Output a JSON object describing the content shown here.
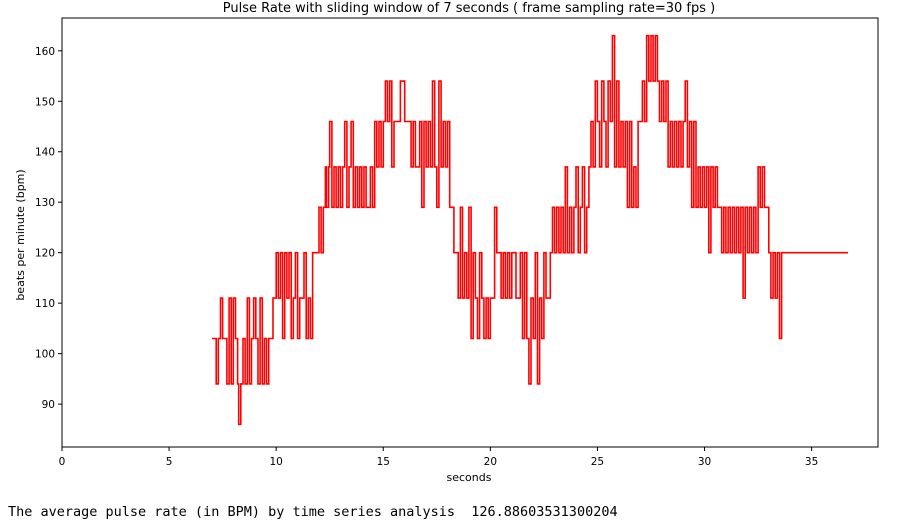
{
  "chart_data": {
    "type": "line",
    "title": "Pulse Rate with sliding window of 7 seconds  ( frame sampling rate=30 fps )",
    "xlabel": "seconds",
    "ylabel": "beats per minute (bpm)",
    "xlim": [
      0,
      38.1
    ],
    "ylim": [
      81.5,
      166.5
    ],
    "xticks": [
      0,
      5,
      10,
      15,
      20,
      25,
      30,
      35
    ],
    "yticks": [
      90,
      100,
      110,
      120,
      130,
      140,
      150,
      160
    ],
    "grid": false,
    "line_color": "#ff0000",
    "series": [
      {
        "values": [
          [
            7.0,
            103
          ],
          [
            7.2,
            94
          ],
          [
            7.3,
            103
          ],
          [
            7.4,
            111
          ],
          [
            7.5,
            103
          ],
          [
            7.6,
            103
          ],
          [
            7.7,
            94
          ],
          [
            7.8,
            111
          ],
          [
            7.9,
            94
          ],
          [
            8.0,
            111
          ],
          [
            8.1,
            103
          ],
          [
            8.2,
            94
          ],
          [
            8.25,
            86
          ],
          [
            8.35,
            94
          ],
          [
            8.45,
            103
          ],
          [
            8.55,
            94
          ],
          [
            8.65,
            111
          ],
          [
            8.75,
            94
          ],
          [
            8.85,
            103
          ],
          [
            8.95,
            111
          ],
          [
            9.05,
            103
          ],
          [
            9.15,
            94
          ],
          [
            9.25,
            111
          ],
          [
            9.35,
            94
          ],
          [
            9.45,
            103
          ],
          [
            9.55,
            94
          ],
          [
            9.65,
            103
          ],
          [
            9.75,
            103
          ],
          [
            9.85,
            111
          ],
          [
            9.95,
            111
          ],
          [
            10.0,
            120
          ],
          [
            10.1,
            111
          ],
          [
            10.2,
            120
          ],
          [
            10.3,
            103
          ],
          [
            10.4,
            120
          ],
          [
            10.5,
            111
          ],
          [
            10.6,
            120
          ],
          [
            10.7,
            103
          ],
          [
            10.8,
            111
          ],
          [
            10.9,
            120
          ],
          [
            11.0,
            103
          ],
          [
            11.1,
            111
          ],
          [
            11.2,
            111
          ],
          [
            11.3,
            120
          ],
          [
            11.4,
            103
          ],
          [
            11.5,
            111
          ],
          [
            11.6,
            103
          ],
          [
            11.7,
            120
          ],
          [
            11.9,
            120
          ],
          [
            12.0,
            129
          ],
          [
            12.1,
            120
          ],
          [
            12.2,
            129
          ],
          [
            12.3,
            137
          ],
          [
            12.35,
            129
          ],
          [
            12.45,
            137
          ],
          [
            12.5,
            146
          ],
          [
            12.6,
            129
          ],
          [
            12.7,
            137
          ],
          [
            12.8,
            129
          ],
          [
            12.9,
            137
          ],
          [
            13.0,
            129
          ],
          [
            13.1,
            137
          ],
          [
            13.2,
            146
          ],
          [
            13.3,
            129
          ],
          [
            13.4,
            137
          ],
          [
            13.5,
            146
          ],
          [
            13.6,
            129
          ],
          [
            13.7,
            137
          ],
          [
            13.8,
            129
          ],
          [
            13.9,
            137
          ],
          [
            14.0,
            129
          ],
          [
            14.1,
            137
          ],
          [
            14.2,
            129
          ],
          [
            14.3,
            129
          ],
          [
            14.4,
            137
          ],
          [
            14.5,
            129
          ],
          [
            14.6,
            146
          ],
          [
            14.7,
            137
          ],
          [
            14.8,
            146
          ],
          [
            14.9,
            137
          ],
          [
            15.0,
            146
          ],
          [
            15.1,
            154
          ],
          [
            15.2,
            146
          ],
          [
            15.3,
            154
          ],
          [
            15.4,
            137
          ],
          [
            15.5,
            146
          ],
          [
            15.6,
            146
          ],
          [
            15.8,
            154
          ],
          [
            16.0,
            146
          ],
          [
            16.2,
            146
          ],
          [
            16.3,
            137
          ],
          [
            16.4,
            146
          ],
          [
            16.5,
            137
          ],
          [
            16.7,
            146
          ],
          [
            16.8,
            129
          ],
          [
            16.9,
            146
          ],
          [
            17.0,
            137
          ],
          [
            17.1,
            146
          ],
          [
            17.2,
            137
          ],
          [
            17.3,
            154
          ],
          [
            17.4,
            137
          ],
          [
            17.5,
            129
          ],
          [
            17.6,
            154
          ],
          [
            17.7,
            137
          ],
          [
            17.8,
            146
          ],
          [
            17.9,
            137
          ],
          [
            18.0,
            146
          ],
          [
            18.1,
            129
          ],
          [
            18.2,
            129
          ],
          [
            18.3,
            120
          ],
          [
            18.4,
            120
          ],
          [
            18.5,
            111
          ],
          [
            18.6,
            129
          ],
          [
            18.7,
            111
          ],
          [
            18.8,
            120
          ],
          [
            18.9,
            111
          ],
          [
            19.0,
            129
          ],
          [
            19.1,
            103
          ],
          [
            19.2,
            120
          ],
          [
            19.3,
            111
          ],
          [
            19.4,
            103
          ],
          [
            19.5,
            120
          ],
          [
            19.6,
            111
          ],
          [
            19.7,
            103
          ],
          [
            19.8,
            111
          ],
          [
            19.9,
            103
          ],
          [
            20.0,
            111
          ],
          [
            20.1,
            111
          ],
          [
            20.2,
            129
          ],
          [
            20.3,
            120
          ],
          [
            20.4,
            120
          ],
          [
            20.5,
            111
          ],
          [
            20.6,
            120
          ],
          [
            20.7,
            111
          ],
          [
            20.8,
            120
          ],
          [
            20.9,
            111
          ],
          [
            21.0,
            120
          ],
          [
            21.1,
            120
          ],
          [
            21.2,
            111
          ],
          [
            21.3,
            111
          ],
          [
            21.4,
            120
          ],
          [
            21.5,
            103
          ],
          [
            21.6,
            120
          ],
          [
            21.7,
            103
          ],
          [
            21.8,
            94
          ],
          [
            21.9,
            111
          ],
          [
            22.0,
            103
          ],
          [
            22.1,
            120
          ],
          [
            22.2,
            94
          ],
          [
            22.3,
            111
          ],
          [
            22.4,
            103
          ],
          [
            22.5,
            120
          ],
          [
            22.6,
            111
          ],
          [
            22.7,
            111
          ],
          [
            22.8,
            120
          ],
          [
            22.9,
            129
          ],
          [
            23.0,
            120
          ],
          [
            23.1,
            129
          ],
          [
            23.2,
            120
          ],
          [
            23.3,
            129
          ],
          [
            23.4,
            120
          ],
          [
            23.5,
            137
          ],
          [
            23.6,
            120
          ],
          [
            23.7,
            129
          ],
          [
            23.8,
            120
          ],
          [
            23.9,
            129
          ],
          [
            24.0,
            137
          ],
          [
            24.1,
            120
          ],
          [
            24.2,
            129
          ],
          [
            24.3,
            137
          ],
          [
            24.4,
            120
          ],
          [
            24.5,
            129
          ],
          [
            24.6,
            137
          ],
          [
            24.7,
            146
          ],
          [
            24.8,
            137
          ],
          [
            24.9,
            154
          ],
          [
            25.0,
            146
          ],
          [
            25.1,
            137
          ],
          [
            25.2,
            154
          ],
          [
            25.3,
            146
          ],
          [
            25.4,
            137
          ],
          [
            25.5,
            154
          ],
          [
            25.6,
            146
          ],
          [
            25.7,
            163
          ],
          [
            25.8,
            137
          ],
          [
            25.9,
            154
          ],
          [
            26.0,
            137
          ],
          [
            26.1,
            146
          ],
          [
            26.2,
            137
          ],
          [
            26.3,
            146
          ],
          [
            26.4,
            129
          ],
          [
            26.5,
            146
          ],
          [
            26.6,
            129
          ],
          [
            26.7,
            137
          ],
          [
            26.8,
            129
          ],
          [
            26.9,
            146
          ],
          [
            27.0,
            146
          ],
          [
            27.1,
            154
          ],
          [
            27.2,
            146
          ],
          [
            27.3,
            163
          ],
          [
            27.4,
            154
          ],
          [
            27.5,
            163
          ],
          [
            27.6,
            154
          ],
          [
            27.7,
            163
          ],
          [
            27.8,
            154
          ],
          [
            27.9,
            146
          ],
          [
            28.0,
            154
          ],
          [
            28.1,
            146
          ],
          [
            28.2,
            154
          ],
          [
            28.3,
            137
          ],
          [
            28.4,
            146
          ],
          [
            28.5,
            137
          ],
          [
            28.6,
            146
          ],
          [
            28.7,
            137
          ],
          [
            28.8,
            146
          ],
          [
            28.9,
            137
          ],
          [
            29.0,
            146
          ],
          [
            29.1,
            154
          ],
          [
            29.2,
            137
          ],
          [
            29.3,
            146
          ],
          [
            29.4,
            129
          ],
          [
            29.5,
            146
          ],
          [
            29.6,
            129
          ],
          [
            29.7,
            137
          ],
          [
            29.8,
            129
          ],
          [
            29.9,
            137
          ],
          [
            30.0,
            129
          ],
          [
            30.1,
            137
          ],
          [
            30.2,
            120
          ],
          [
            30.3,
            137
          ],
          [
            30.4,
            129
          ],
          [
            30.5,
            137
          ],
          [
            30.6,
            129
          ],
          [
            30.7,
            129
          ],
          [
            30.8,
            120
          ],
          [
            30.9,
            129
          ],
          [
            31.0,
            120
          ],
          [
            31.1,
            129
          ],
          [
            31.2,
            120
          ],
          [
            31.3,
            129
          ],
          [
            31.4,
            120
          ],
          [
            31.5,
            129
          ],
          [
            31.6,
            120
          ],
          [
            31.7,
            129
          ],
          [
            31.8,
            111
          ],
          [
            31.9,
            129
          ],
          [
            32.0,
            120
          ],
          [
            32.1,
            129
          ],
          [
            32.2,
            120
          ],
          [
            32.3,
            129
          ],
          [
            32.4,
            120
          ],
          [
            32.5,
            137
          ],
          [
            32.6,
            129
          ],
          [
            32.7,
            137
          ],
          [
            32.8,
            129
          ],
          [
            32.9,
            129
          ],
          [
            33.0,
            120
          ],
          [
            33.1,
            111
          ],
          [
            33.2,
            120
          ],
          [
            33.3,
            111
          ],
          [
            33.4,
            120
          ],
          [
            33.5,
            103
          ],
          [
            33.6,
            120
          ],
          [
            33.7,
            120
          ],
          [
            33.8,
            120
          ]
        ]
      }
    ]
  },
  "output_text": "The average pulse rate (in BPM) by time series analysis  126.88603531300204"
}
